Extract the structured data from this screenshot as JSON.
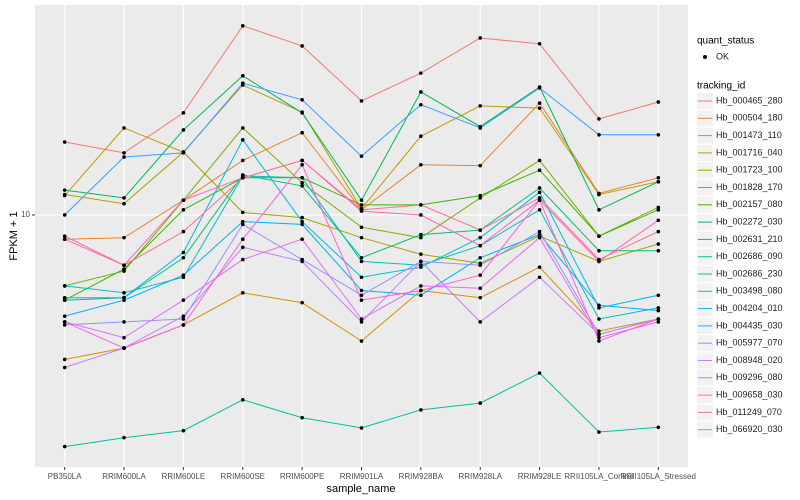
{
  "chart_data": {
    "type": "line",
    "x_label": "sample_name",
    "y_label": "FPKM + 1",
    "log_scale": true,
    "grid": true,
    "ylim": [
      1.445,
      50.1
    ],
    "yticks": [
      10
    ],
    "point_color": "#000000",
    "categories": [
      "PB350LA",
      "RRIM600LA",
      "RRIM600LE",
      "RRIM600SE",
      "RRIM600PE",
      "RRIM901LA",
      "RRIM928BA",
      "RRIM928LA",
      "RRIM928LE",
      "RRII105LA_Control",
      "RRII105LA_Stressed"
    ],
    "shape_legend": {
      "title": "quant_status",
      "labels": [
        "OK"
      ]
    },
    "legend_title": "tracking_id",
    "series": [
      {
        "name": "Hb_000465_280",
        "color": "#F8766D",
        "values": [
          17.5,
          16.1,
          21.9,
          42.7,
          36.6,
          24.0,
          29.7,
          38.9,
          37.2,
          20.9,
          23.8
        ]
      },
      {
        "name": "Hb_000504_180",
        "color": "#EA8331",
        "values": [
          8.3,
          8.4,
          11.2,
          15.2,
          18.8,
          10.4,
          14.7,
          14.6,
          23.6,
          11.8,
          13.3
        ]
      },
      {
        "name": "Hb_001473_110",
        "color": "#D89000",
        "values": [
          3.3,
          3.6,
          4.3,
          5.5,
          5.1,
          3.8,
          5.6,
          5.3,
          6.7,
          4.1,
          4.5
        ]
      },
      {
        "name": "Hb_001716_040",
        "color": "#C09B00",
        "values": [
          11.6,
          19.5,
          16.2,
          27.1,
          22.0,
          10.5,
          18.3,
          23.1,
          22.7,
          11.7,
          12.9
        ]
      },
      {
        "name": "Hb_001723_100",
        "color": "#A3A500",
        "values": [
          11.7,
          10.9,
          16.2,
          10.2,
          9.8,
          8.4,
          7.4,
          6.9,
          8.5,
          7.0,
          8.0
        ]
      },
      {
        "name": "Hb_001828_170",
        "color": "#7CAE00",
        "values": [
          5.8,
          6.5,
          11.2,
          19.5,
          12.8,
          9.1,
          8.4,
          11.4,
          15.2,
          8.5,
          10.6
        ]
      },
      {
        "name": "Hb_002157_080",
        "color": "#39B600",
        "values": [
          5.2,
          6.6,
          10.4,
          13.3,
          13.3,
          10.8,
          10.8,
          11.6,
          14.1,
          8.5,
          10.4
        ]
      },
      {
        "name": "Hb_002272_030",
        "color": "#00BB4E",
        "values": [
          12.1,
          11.4,
          19.2,
          29.1,
          21.9,
          11.2,
          25.7,
          19.7,
          26.7,
          10.4,
          12.9
        ]
      },
      {
        "name": "Hb_002631_210",
        "color": "#00BF7D",
        "values": [
          5.2,
          5.3,
          7.2,
          13.6,
          12.5,
          7.2,
          8.6,
          8.9,
          12.3,
          7.6,
          7.6
        ]
      },
      {
        "name": "Hb_002686_090",
        "color": "#00C1A3",
        "values": [
          1.69,
          1.81,
          1.91,
          2.42,
          2.11,
          1.95,
          2.24,
          2.36,
          2.97,
          1.89,
          1.96
        ]
      },
      {
        "name": "Hb_002686_230",
        "color": "#00BFC4",
        "values": [
          5.8,
          5.5,
          6.2,
          13.5,
          13.3,
          7.0,
          6.8,
          7.9,
          10.4,
          4.5,
          4.9
        ]
      },
      {
        "name": "Hb_003498_080",
        "color": "#00BAE0",
        "values": [
          5.3,
          5.3,
          7.5,
          17.8,
          9.5,
          6.2,
          6.7,
          8.4,
          11.9,
          4.9,
          5.4
        ]
      },
      {
        "name": "Hb_004204_010",
        "color": "#00B0F6",
        "values": [
          4.6,
          5.2,
          6.3,
          9.5,
          9.3,
          5.6,
          5.4,
          7.2,
          8.6,
          5.0,
          4.8
        ]
      },
      {
        "name": "Hb_004435_030",
        "color": "#35A2FF",
        "values": [
          10.0,
          15.6,
          16.1,
          27.5,
          24.2,
          15.7,
          23.3,
          19.5,
          26.5,
          18.5,
          18.5
        ]
      },
      {
        "name": "Hb_005977_070",
        "color": "#9590FF",
        "values": [
          4.3,
          4.4,
          4.5,
          9.3,
          7.1,
          5.4,
          7.0,
          6.8,
          8.8,
          4.0,
          4.5
        ]
      },
      {
        "name": "Hb_008948_020",
        "color": "#C77CFF",
        "values": [
          3.1,
          3.6,
          4.6,
          7.8,
          7.0,
          4.4,
          7.0,
          4.4,
          6.2,
          4.0,
          4.5
        ]
      },
      {
        "name": "Hb_009296_080",
        "color": "#E76BF3",
        "values": [
          4.4,
          3.9,
          5.2,
          7.1,
          8.3,
          4.5,
          5.8,
          5.7,
          8.4,
          3.9,
          4.4
        ]
      },
      {
        "name": "Hb_009658_030",
        "color": "#FA62DB",
        "values": [
          4.4,
          3.6,
          4.3,
          8.3,
          14.7,
          5.2,
          5.6,
          6.3,
          11.2,
          3.8,
          4.5
        ]
      },
      {
        "name": "Hb_011249_070",
        "color": "#FF62BC",
        "values": [
          8.5,
          6.8,
          11.2,
          13.3,
          15.2,
          10.3,
          10.0,
          7.9,
          11.2,
          7.0,
          9.6
        ]
      },
      {
        "name": "Hb_066920_030",
        "color": "#FF6C91",
        "values": [
          8.3,
          6.8,
          8.8,
          13.3,
          15.2,
          10.4,
          10.8,
          8.9,
          11.4,
          7.1,
          8.8
        ]
      }
    ]
  }
}
